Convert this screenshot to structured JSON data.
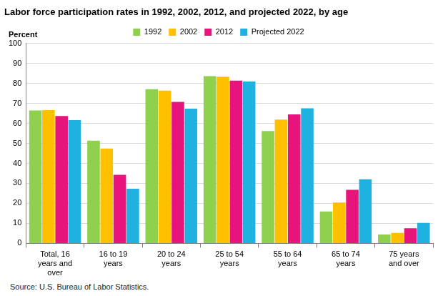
{
  "chart_data": {
    "type": "bar",
    "title": "Labor force participation rates in 1992, 2002, 2012, and projected 2022, by age",
    "ylabel": "Percent",
    "source": "Source: U.S. Bureau of Labor Statistics.",
    "categories": [
      "Total, 16 years and over",
      "16 to 19 years",
      "20 to 24 years",
      "25 to 54 years",
      "55 to 64 years",
      "65 to 74 years",
      "75 years and over"
    ],
    "series": [
      {
        "name": "1992",
        "color": "#8fd14f",
        "values": [
          66.4,
          51.3,
          77.1,
          83.6,
          56.2,
          16.0,
          4.4
        ]
      },
      {
        "name": "2002",
        "color": "#ffc000",
        "values": [
          66.6,
          47.4,
          76.4,
          83.3,
          61.9,
          20.4,
          5.2
        ]
      },
      {
        "name": "2012",
        "color": "#e7157b",
        "values": [
          63.7,
          34.3,
          70.7,
          81.4,
          64.5,
          26.8,
          7.6
        ]
      },
      {
        "name": "Projected 2022",
        "color": "#1fb1e0",
        "values": [
          61.6,
          27.3,
          67.3,
          80.9,
          67.5,
          32.0,
          10.2
        ]
      }
    ],
    "ylim": [
      0,
      100
    ],
    "yticks": [
      0,
      10,
      20,
      30,
      40,
      50,
      60,
      70,
      80,
      90,
      100
    ],
    "grid": true,
    "legend": "top"
  }
}
